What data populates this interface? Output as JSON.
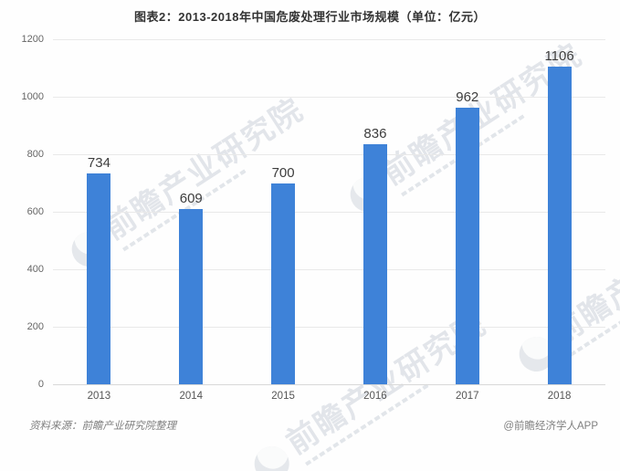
{
  "chart_data": {
    "type": "bar",
    "title": "图表2：2013-2018年中国危废处理行业市场规模（单位：亿元）",
    "categories": [
      "2013",
      "2014",
      "2015",
      "2016",
      "2017",
      "2018"
    ],
    "values": [
      734,
      609,
      700,
      836,
      962,
      1106
    ],
    "xlabel": "",
    "ylabel": "",
    "ylim": [
      0,
      1200
    ],
    "yticks": [
      0,
      200,
      400,
      600,
      800,
      1000,
      1200
    ],
    "grid": true,
    "legend": "none",
    "bar_color": "#3e82d8"
  },
  "footer": {
    "source": "资料来源：前瞻产业研究院整理",
    "credit": "@前瞻经济学人APP"
  },
  "watermark": {
    "text": "前瞻产业研究院"
  }
}
